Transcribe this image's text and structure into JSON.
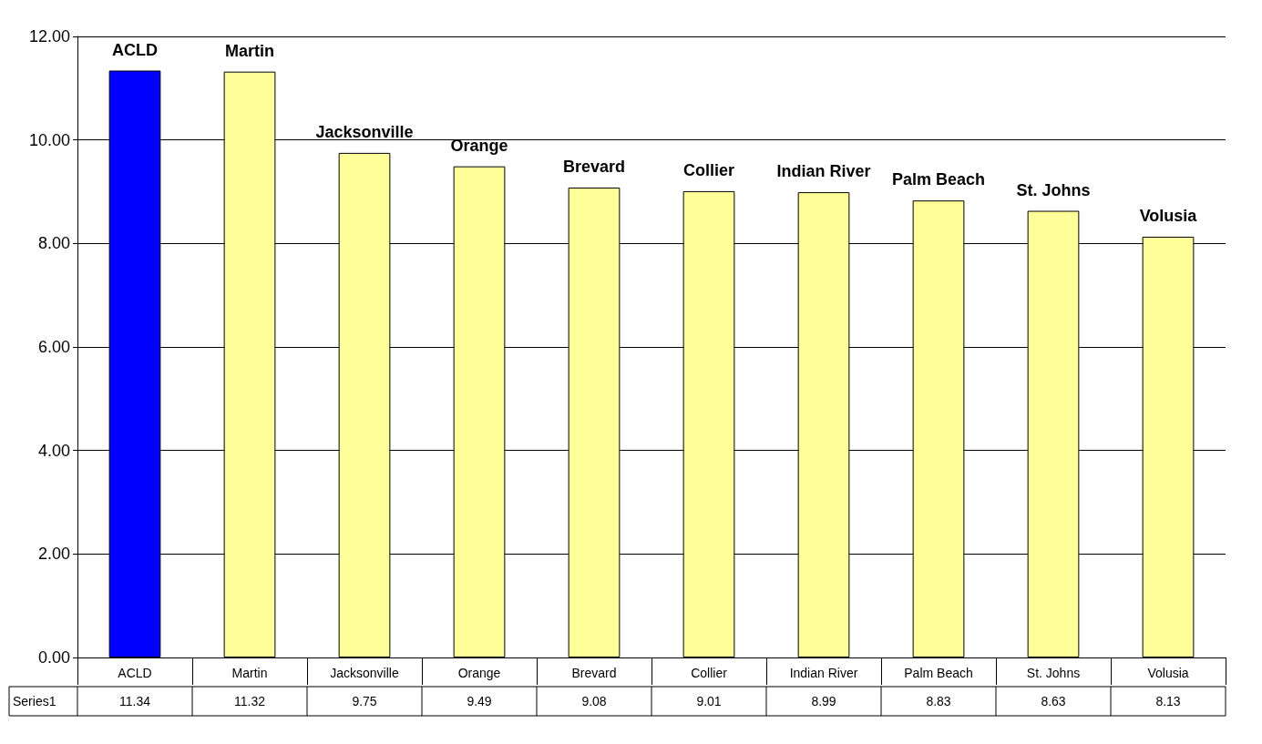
{
  "chart_data": {
    "type": "bar",
    "categories": [
      "ACLD",
      "Martin",
      "Jacksonville",
      "Orange",
      "Brevard",
      "Collier",
      "Indian River",
      "Palm Beach",
      "St. Johns",
      "Volusia"
    ],
    "series": [
      {
        "name": "Series1",
        "colors": [
          "#0000ff",
          "#ffff99",
          "#ffff99",
          "#ffff99",
          "#ffff99",
          "#ffff99",
          "#ffff99",
          "#ffff99",
          "#ffff99",
          "#ffff99"
        ],
        "values": [
          11.34,
          11.32,
          9.75,
          9.49,
          9.08,
          9.01,
          8.99,
          8.83,
          8.63,
          8.13
        ]
      }
    ],
    "ylim": [
      0,
      12
    ],
    "yticks": [
      {
        "value": 0,
        "label": "0.00"
      },
      {
        "value": 2,
        "label": "2.00"
      },
      {
        "value": 4,
        "label": "4.00"
      },
      {
        "value": 6,
        "label": "6.00"
      },
      {
        "value": 8,
        "label": "8.00"
      },
      {
        "value": 10,
        "label": "10.00"
      },
      {
        "value": 12,
        "label": "12.00"
      }
    ],
    "grid": "y",
    "data_labels": true
  }
}
